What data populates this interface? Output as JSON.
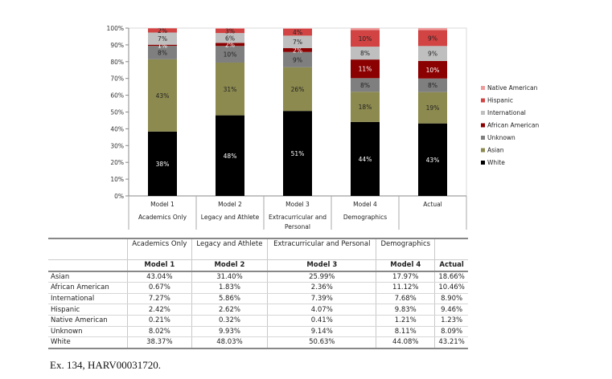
{
  "chart_data": {
    "type": "bar",
    "stacked": true,
    "categories": [
      "Model 1",
      "Model 2",
      "Model 3",
      "Model 4",
      "Actual"
    ],
    "category_sublabels": [
      "Academics Only",
      "Legacy and Athlete",
      "Extracurricular and Personal",
      "Demographics",
      ""
    ],
    "ylim": [
      0,
      100
    ],
    "yticks": [
      "0%",
      "10%",
      "20%",
      "30%",
      "40%",
      "50%",
      "60%",
      "70%",
      "80%",
      "90%",
      "100%"
    ],
    "legend_position": "right",
    "series": [
      {
        "name": "White",
        "color": "#000000",
        "label_color": "#ffffff",
        "values": [
          38.37,
          48.03,
          50.63,
          44.08,
          43.21
        ],
        "labels": [
          "38%",
          "48%",
          "51%",
          "44%",
          "43%"
        ]
      },
      {
        "name": "Asian",
        "color": "#8c8a4f",
        "label_color": "#222222",
        "values": [
          43.04,
          31.4,
          25.99,
          17.97,
          18.66
        ],
        "labels": [
          "43%",
          "31%",
          "26%",
          "18%",
          "19%"
        ]
      },
      {
        "name": "Unknown",
        "color": "#7f7f7f",
        "label_color": "#222222",
        "values": [
          8.02,
          9.93,
          9.14,
          8.11,
          8.09
        ],
        "labels": [
          "8%",
          "10%",
          "9%",
          "8%",
          "8%"
        ]
      },
      {
        "name": "African American",
        "color": "#8b0000",
        "label_color": "#ffffff",
        "values": [
          0.67,
          1.83,
          2.36,
          11.12,
          10.46
        ],
        "labels": [
          "1%",
          "2%",
          "2%",
          "11%",
          "10%"
        ]
      },
      {
        "name": "International",
        "color": "#bfbfbf",
        "label_color": "#222222",
        "values": [
          7.27,
          5.86,
          7.39,
          7.68,
          8.9
        ],
        "labels": [
          "7%",
          "6%",
          "7%",
          "8%",
          "9%"
        ]
      },
      {
        "name": "Hispanic",
        "color": "#d24343",
        "label_color": "#222222",
        "values": [
          2.42,
          2.62,
          4.07,
          9.83,
          9.46
        ],
        "labels": [
          "2%",
          "3%",
          "4%",
          "10%",
          "9%"
        ]
      },
      {
        "name": "Native American",
        "color": "#ee9b9b",
        "label_color": "#222222",
        "values": [
          0.21,
          0.32,
          0.41,
          1.21,
          1.23
        ],
        "labels": [
          null,
          null,
          null,
          null,
          null
        ]
      }
    ],
    "legend_order": [
      "Native American",
      "Hispanic",
      "International",
      "African American",
      "Unknown",
      "Asian",
      "White"
    ]
  },
  "table": {
    "subheaders": [
      "Academics Only",
      "Legacy and Athlete",
      "Extracurricular and Personal",
      "Demographics",
      ""
    ],
    "headers": [
      "Model 1",
      "Model 2",
      "Model 3",
      "Model 4",
      "Actual"
    ],
    "rows": [
      {
        "label": "Asian",
        "values": [
          "43.04%",
          "31.40%",
          "25.99%",
          "17.97%",
          "18.66%"
        ]
      },
      {
        "label": "African American",
        "values": [
          "0.67%",
          "1.83%",
          "2.36%",
          "11.12%",
          "10.46%"
        ]
      },
      {
        "label": "International",
        "values": [
          "7.27%",
          "5.86%",
          "7.39%",
          "7.68%",
          "8.90%"
        ]
      },
      {
        "label": "Hispanic",
        "values": [
          "2.42%",
          "2.62%",
          "4.07%",
          "9.83%",
          "9.46%"
        ]
      },
      {
        "label": "Native American",
        "values": [
          "0.21%",
          "0.32%",
          "0.41%",
          "1.21%",
          "1.23%"
        ]
      },
      {
        "label": "Unknown",
        "values": [
          "8.02%",
          "9.93%",
          "9.14%",
          "8.11%",
          "8.09%"
        ]
      },
      {
        "label": "White",
        "values": [
          "38.37%",
          "48.03%",
          "50.63%",
          "44.08%",
          "43.21%"
        ]
      }
    ]
  },
  "footer": "Ex. 134, HARV00031720."
}
